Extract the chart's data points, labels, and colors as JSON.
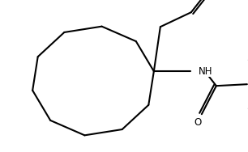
{
  "bg_color": "#ffffff",
  "line_color": "#000000",
  "line_width": 1.5,
  "fig_width": 3.06,
  "fig_height": 1.88,
  "dpi": 100
}
